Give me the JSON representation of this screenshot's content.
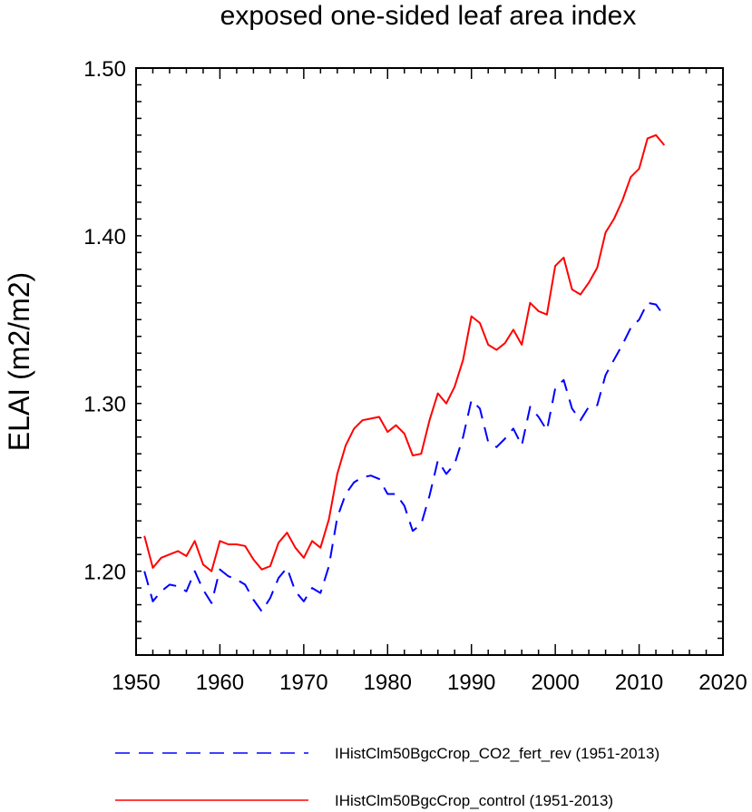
{
  "chart_data": {
    "type": "line",
    "title": "exposed one-sided leaf area index",
    "xlabel": "",
    "ylabel": "ELAI  (m2/m2)",
    "xlim": [
      1950,
      2020
    ],
    "ylim": [
      1.15,
      1.5
    ],
    "x_ticks": [
      1950,
      1960,
      1970,
      1980,
      1990,
      2000,
      2010,
      2020
    ],
    "y_ticks": [
      1.2,
      1.3,
      1.4,
      1.5
    ],
    "y_tick_labels": [
      "1.20",
      "1.30",
      "1.40",
      "1.50"
    ],
    "grid": false,
    "legend_position": "bottom",
    "x": [
      1951,
      1952,
      1953,
      1954,
      1955,
      1956,
      1957,
      1958,
      1959,
      1960,
      1961,
      1962,
      1963,
      1964,
      1965,
      1966,
      1967,
      1968,
      1969,
      1970,
      1971,
      1972,
      1973,
      1974,
      1975,
      1976,
      1977,
      1978,
      1979,
      1980,
      1981,
      1982,
      1983,
      1984,
      1985,
      1986,
      1987,
      1988,
      1989,
      1990,
      1991,
      1992,
      1993,
      1994,
      1995,
      1996,
      1997,
      1998,
      1999,
      2000,
      2001,
      2002,
      2003,
      2004,
      2005,
      2006,
      2007,
      2008,
      2009,
      2010,
      2011,
      2012,
      2013
    ],
    "series": [
      {
        "name": "IHistClm50BgcCrop_CO2_fert_rev (1951-2013)",
        "color": "#0000ff",
        "dash": "dashed",
        "values": [
          1.2,
          1.182,
          1.188,
          1.192,
          1.191,
          1.188,
          1.2,
          1.189,
          1.181,
          1.201,
          1.197,
          1.195,
          1.192,
          1.183,
          1.176,
          1.184,
          1.196,
          1.202,
          1.188,
          1.182,
          1.19,
          1.187,
          1.203,
          1.232,
          1.246,
          1.253,
          1.256,
          1.257,
          1.255,
          1.246,
          1.246,
          1.239,
          1.224,
          1.228,
          1.245,
          1.266,
          1.258,
          1.264,
          1.28,
          1.302,
          1.297,
          1.277,
          1.274,
          1.279,
          1.285,
          1.275,
          1.298,
          1.292,
          1.284,
          1.309,
          1.314,
          1.297,
          1.29,
          1.298,
          1.299,
          1.317,
          1.326,
          1.335,
          1.345,
          1.35,
          1.36,
          1.359,
          1.352
        ]
      },
      {
        "name": "IHistClm50BgcCrop_control (1951-2013)",
        "color": "#ff0000",
        "dash": "solid",
        "values": [
          1.221,
          1.202,
          1.208,
          1.21,
          1.212,
          1.209,
          1.218,
          1.204,
          1.2,
          1.218,
          1.216,
          1.216,
          1.215,
          1.207,
          1.201,
          1.203,
          1.217,
          1.223,
          1.214,
          1.208,
          1.218,
          1.214,
          1.231,
          1.258,
          1.275,
          1.285,
          1.29,
          1.291,
          1.292,
          1.283,
          1.287,
          1.282,
          1.269,
          1.27,
          1.29,
          1.306,
          1.3,
          1.31,
          1.326,
          1.352,
          1.348,
          1.335,
          1.332,
          1.336,
          1.344,
          1.335,
          1.36,
          1.355,
          1.353,
          1.382,
          1.387,
          1.368,
          1.365,
          1.372,
          1.381,
          1.402,
          1.41,
          1.421,
          1.435,
          1.44,
          1.458,
          1.46,
          1.454
        ]
      }
    ]
  }
}
